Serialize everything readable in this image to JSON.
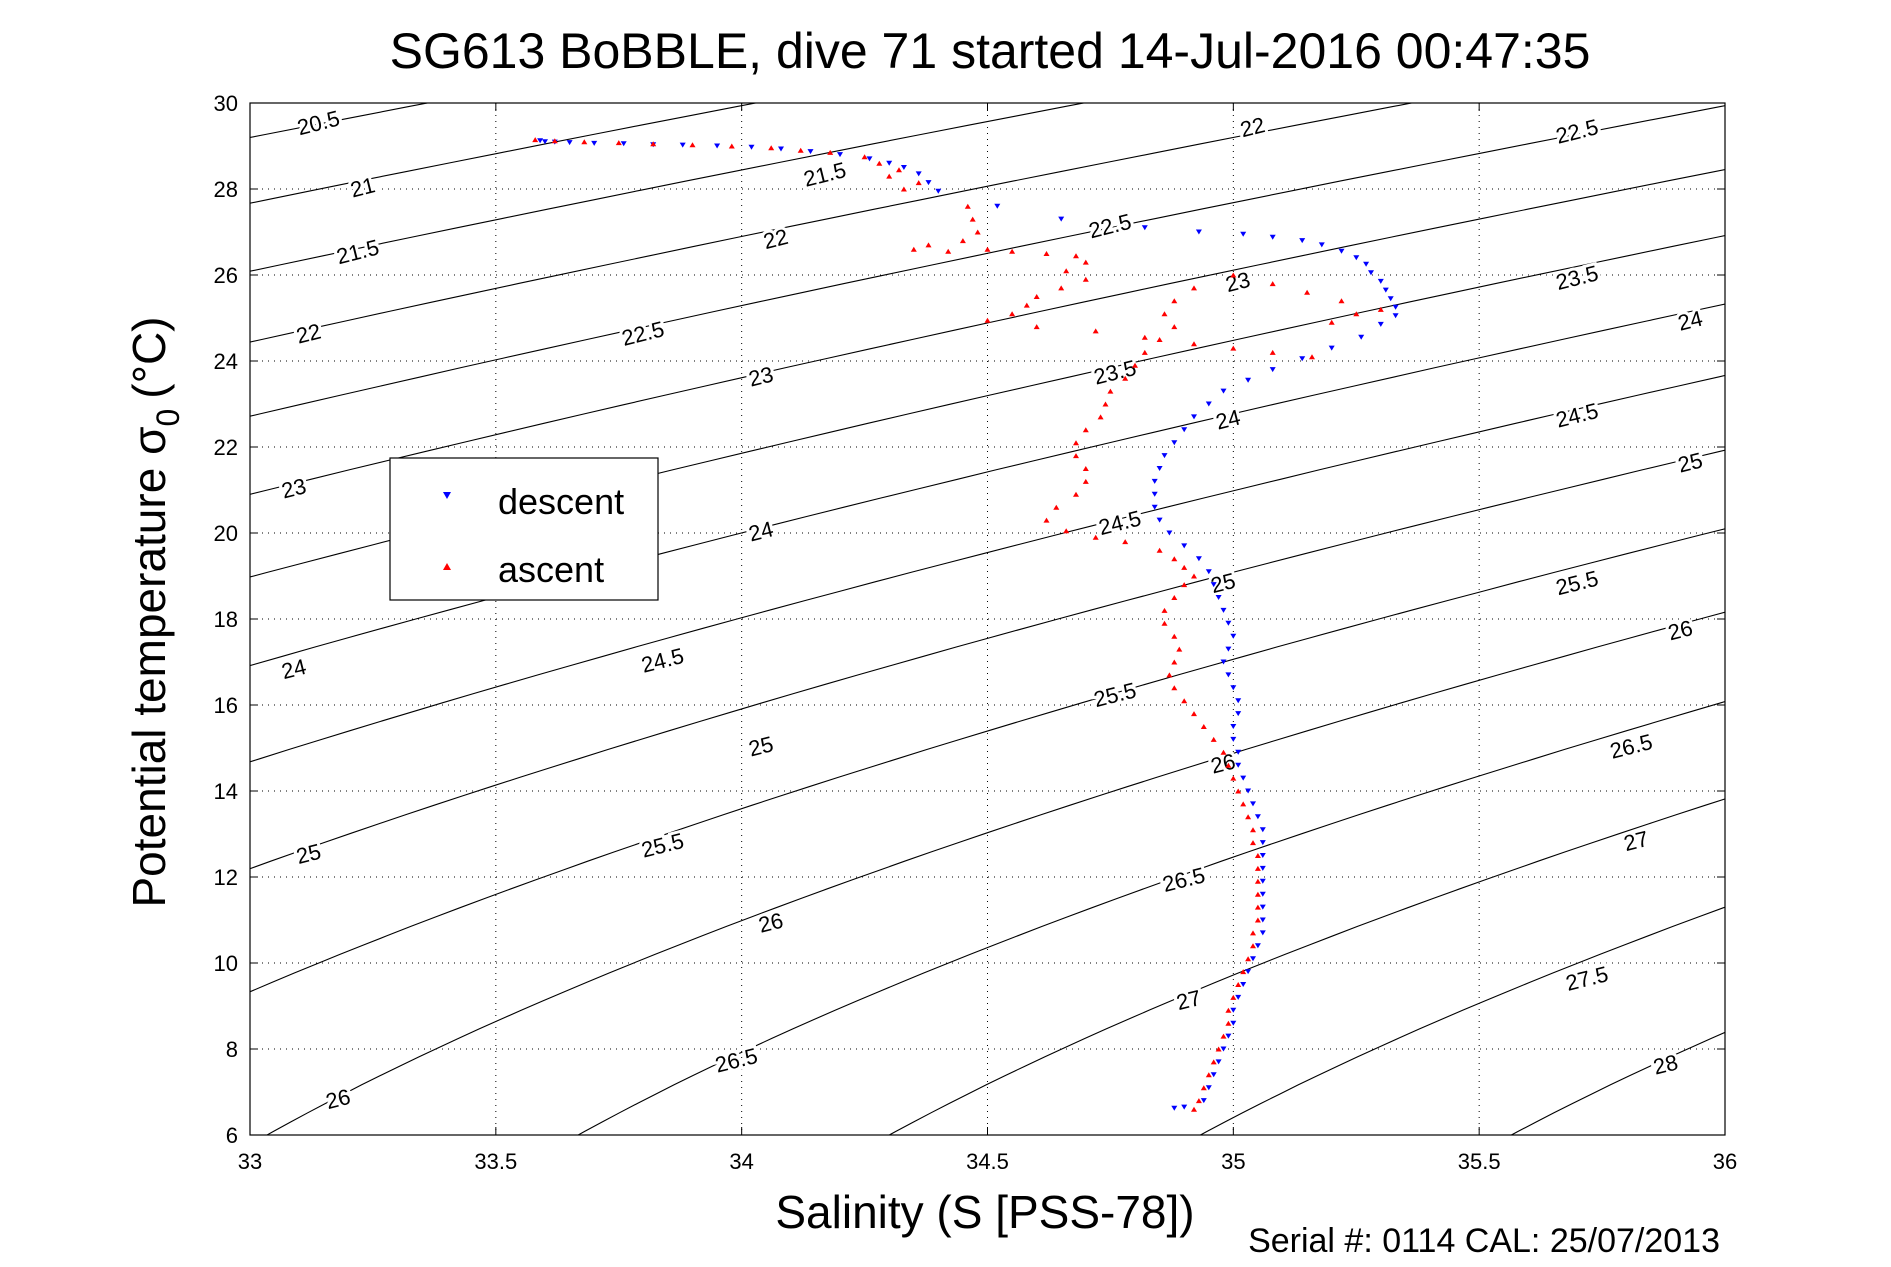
{
  "chart_data": {
    "type": "scatter",
    "title": "SG613 BoBBLE, dive 71 started 14-Jul-2016 00:47:35",
    "xlabel": "Salinity (S [PSS-78])",
    "ylabel_main": "Potential temperature σ",
    "ylabel_sub": "0",
    "ylabel_unit": "(°C)",
    "footer": "Serial #: 0114  CAL: 25/07/2013",
    "xlim": [
      33,
      36
    ],
    "ylim": [
      6,
      30
    ],
    "xticks": [
      "33",
      "33.5",
      "34",
      "34.5",
      "35",
      "35.5",
      "36"
    ],
    "yticks": [
      "6",
      "8",
      "10",
      "12",
      "14",
      "16",
      "18",
      "20",
      "22",
      "24",
      "26",
      "28",
      "30"
    ],
    "grid": "dotted",
    "legend": [
      {
        "label": "descent",
        "color": "#0000ff",
        "marker": "triangle-down"
      },
      {
        "label": "ascent",
        "color": "#ff0000",
        "marker": "triangle-up"
      }
    ],
    "legend_position": "left",
    "contours": {
      "levels": [
        20.5,
        21,
        21.5,
        22,
        22.5,
        23,
        23.5,
        24,
        24.5,
        25,
        25.5,
        26,
        26.5,
        27,
        27.5,
        28
      ],
      "labels": [
        {
          "text": "20.5",
          "s": 33.14,
          "t": 29.5
        },
        {
          "text": "21",
          "s": 33.23,
          "t": 28.0
        },
        {
          "text": "21.5",
          "s": 33.22,
          "t": 26.5
        },
        {
          "text": "22",
          "s": 33.12,
          "t": 24.6
        },
        {
          "text": "23",
          "s": 33.09,
          "t": 21.0
        },
        {
          "text": "24",
          "s": 33.09,
          "t": 16.8
        },
        {
          "text": "25",
          "s": 33.12,
          "t": 12.5
        },
        {
          "text": "26",
          "s": 33.18,
          "t": 6.8
        },
        {
          "text": "21.5",
          "s": 34.17,
          "t": 28.3
        },
        {
          "text": "22",
          "s": 34.07,
          "t": 26.8
        },
        {
          "text": "22.5",
          "s": 33.8,
          "t": 24.6
        },
        {
          "text": "23",
          "s": 34.04,
          "t": 23.6
        },
        {
          "text": "24",
          "s": 34.04,
          "t": 20.0
        },
        {
          "text": "24.5",
          "s": 33.84,
          "t": 17.0
        },
        {
          "text": "25",
          "s": 34.04,
          "t": 15.0
        },
        {
          "text": "25.5",
          "s": 33.84,
          "t": 12.7
        },
        {
          "text": "26",
          "s": 34.06,
          "t": 10.9
        },
        {
          "text": "26.5",
          "s": 33.99,
          "t": 7.7
        },
        {
          "text": "22.5",
          "s": 34.75,
          "t": 27.1
        },
        {
          "text": "23.5",
          "s": 34.76,
          "t": 23.7
        },
        {
          "text": "24.5",
          "s": 34.77,
          "t": 20.2
        },
        {
          "text": "25.5",
          "s": 34.76,
          "t": 16.2
        },
        {
          "text": "26.5",
          "s": 34.9,
          "t": 11.9
        },
        {
          "text": "27",
          "s": 34.91,
          "t": 9.1
        },
        {
          "text": "22",
          "s": 35.04,
          "t": 29.4
        },
        {
          "text": "23",
          "s": 35.01,
          "t": 25.8
        },
        {
          "text": "24",
          "s": 34.99,
          "t": 22.6
        },
        {
          "text": "25",
          "s": 34.98,
          "t": 18.8
        },
        {
          "text": "26",
          "s": 34.98,
          "t": 14.6
        },
        {
          "text": "22.5",
          "s": 35.7,
          "t": 29.3
        },
        {
          "text": "23.5",
          "s": 35.7,
          "t": 25.9
        },
        {
          "text": "24.5",
          "s": 35.7,
          "t": 22.7
        },
        {
          "text": "25.5",
          "s": 35.7,
          "t": 18.8
        },
        {
          "text": "26.5",
          "s": 35.81,
          "t": 15.0
        },
        {
          "text": "27",
          "s": 35.82,
          "t": 12.8
        },
        {
          "text": "27.5",
          "s": 35.72,
          "t": 9.6
        },
        {
          "text": "28",
          "s": 35.88,
          "t": 7.6
        },
        {
          "text": "24",
          "s": 35.93,
          "t": 24.9
        },
        {
          "text": "25",
          "s": 35.93,
          "t": 21.6
        },
        {
          "text": "26",
          "s": 35.91,
          "t": 17.7
        }
      ]
    },
    "series": [
      {
        "name": "descent",
        "color": "#0000ff",
        "marker": "triangle-down",
        "points": [
          [
            33.59,
            29.12
          ],
          [
            33.6,
            29.1
          ],
          [
            33.62,
            29.09
          ],
          [
            33.65,
            29.08
          ],
          [
            33.7,
            29.06
          ],
          [
            33.76,
            29.05
          ],
          [
            33.82,
            29.03
          ],
          [
            33.88,
            29.02
          ],
          [
            33.95,
            29.0
          ],
          [
            34.02,
            28.97
          ],
          [
            34.08,
            28.93
          ],
          [
            34.14,
            28.87
          ],
          [
            34.2,
            28.8
          ],
          [
            34.26,
            28.7
          ],
          [
            34.3,
            28.6
          ],
          [
            34.33,
            28.5
          ],
          [
            34.36,
            28.35
          ],
          [
            34.38,
            28.15
          ],
          [
            34.4,
            27.95
          ],
          [
            34.52,
            27.6
          ],
          [
            34.65,
            27.3
          ],
          [
            34.82,
            27.1
          ],
          [
            34.93,
            27.0
          ],
          [
            35.02,
            26.95
          ],
          [
            35.08,
            26.88
          ],
          [
            35.14,
            26.8
          ],
          [
            35.18,
            26.7
          ],
          [
            35.22,
            26.55
          ],
          [
            35.25,
            26.4
          ],
          [
            35.27,
            26.25
          ],
          [
            35.28,
            26.05
          ],
          [
            35.3,
            25.85
          ],
          [
            35.31,
            25.65
          ],
          [
            35.32,
            25.45
          ],
          [
            35.33,
            25.25
          ],
          [
            35.33,
            25.05
          ],
          [
            35.3,
            24.85
          ],
          [
            35.26,
            24.55
          ],
          [
            35.2,
            24.3
          ],
          [
            35.14,
            24.05
          ],
          [
            35.08,
            23.8
          ],
          [
            35.03,
            23.55
          ],
          [
            34.98,
            23.3
          ],
          [
            34.95,
            23.0
          ],
          [
            34.92,
            22.7
          ],
          [
            34.9,
            22.4
          ],
          [
            34.88,
            22.1
          ],
          [
            34.86,
            21.8
          ],
          [
            34.85,
            21.5
          ],
          [
            34.84,
            21.2
          ],
          [
            34.84,
            20.9
          ],
          [
            34.84,
            20.6
          ],
          [
            34.85,
            20.3
          ],
          [
            34.87,
            20.0
          ],
          [
            34.9,
            19.7
          ],
          [
            34.93,
            19.4
          ],
          [
            34.95,
            19.1
          ],
          [
            34.96,
            18.8
          ],
          [
            34.97,
            18.5
          ],
          [
            34.98,
            18.2
          ],
          [
            34.99,
            17.9
          ],
          [
            35.0,
            17.6
          ],
          [
            34.99,
            17.3
          ],
          [
            34.98,
            17.0
          ],
          [
            34.99,
            16.7
          ],
          [
            35.0,
            16.4
          ],
          [
            35.01,
            16.1
          ],
          [
            35.01,
            15.8
          ],
          [
            35.0,
            15.5
          ],
          [
            35.0,
            15.2
          ],
          [
            35.01,
            14.9
          ],
          [
            35.01,
            14.6
          ],
          [
            35.02,
            14.3
          ],
          [
            35.03,
            14.0
          ],
          [
            35.04,
            13.7
          ],
          [
            35.05,
            13.4
          ],
          [
            35.06,
            13.1
          ],
          [
            35.06,
            12.8
          ],
          [
            35.06,
            12.5
          ],
          [
            35.06,
            12.2
          ],
          [
            35.06,
            11.9
          ],
          [
            35.06,
            11.6
          ],
          [
            35.06,
            11.3
          ],
          [
            35.06,
            11.0
          ],
          [
            35.06,
            10.7
          ],
          [
            35.05,
            10.4
          ],
          [
            35.04,
            10.1
          ],
          [
            35.03,
            9.8
          ],
          [
            35.02,
            9.5
          ],
          [
            35.01,
            9.2
          ],
          [
            35.0,
            8.9
          ],
          [
            35.0,
            8.6
          ],
          [
            34.99,
            8.3
          ],
          [
            34.98,
            8.0
          ],
          [
            34.97,
            7.7
          ],
          [
            34.96,
            7.4
          ],
          [
            34.95,
            7.1
          ],
          [
            34.94,
            6.8
          ],
          [
            34.9,
            6.65
          ],
          [
            34.88,
            6.62
          ]
        ]
      },
      {
        "name": "ascent",
        "color": "#ff0000",
        "marker": "triangle-up",
        "points": [
          [
            33.58,
            29.15
          ],
          [
            33.62,
            29.12
          ],
          [
            33.68,
            29.1
          ],
          [
            33.75,
            29.08
          ],
          [
            33.82,
            29.05
          ],
          [
            33.9,
            29.03
          ],
          [
            33.98,
            29.0
          ],
          [
            34.06,
            28.96
          ],
          [
            34.12,
            28.9
          ],
          [
            34.18,
            28.85
          ],
          [
            34.25,
            28.75
          ],
          [
            34.28,
            28.6
          ],
          [
            34.32,
            28.45
          ],
          [
            34.3,
            28.3
          ],
          [
            34.36,
            28.15
          ],
          [
            34.33,
            28.0
          ],
          [
            34.46,
            27.6
          ],
          [
            34.47,
            27.3
          ],
          [
            34.48,
            27.0
          ],
          [
            34.45,
            26.8
          ],
          [
            34.38,
            26.7
          ],
          [
            34.35,
            26.6
          ],
          [
            34.42,
            26.55
          ],
          [
            34.5,
            26.6
          ],
          [
            34.55,
            26.55
          ],
          [
            34.62,
            26.5
          ],
          [
            34.68,
            26.45
          ],
          [
            34.7,
            26.3
          ],
          [
            34.66,
            26.1
          ],
          [
            34.7,
            25.9
          ],
          [
            34.65,
            25.7
          ],
          [
            34.6,
            25.5
          ],
          [
            34.58,
            25.3
          ],
          [
            34.55,
            25.1
          ],
          [
            34.5,
            24.95
          ],
          [
            34.6,
            24.8
          ],
          [
            34.72,
            24.7
          ],
          [
            34.82,
            24.55
          ],
          [
            34.92,
            24.4
          ],
          [
            35.0,
            24.3
          ],
          [
            35.08,
            24.2
          ],
          [
            35.16,
            24.1
          ],
          [
            35.2,
            24.9
          ],
          [
            35.25,
            25.1
          ],
          [
            35.3,
            25.2
          ],
          [
            35.22,
            25.4
          ],
          [
            35.15,
            25.6
          ],
          [
            35.08,
            25.8
          ],
          [
            35.0,
            26.0
          ],
          [
            34.92,
            25.7
          ],
          [
            34.88,
            25.4
          ],
          [
            34.86,
            25.1
          ],
          [
            34.88,
            24.8
          ],
          [
            34.85,
            24.5
          ],
          [
            34.82,
            24.2
          ],
          [
            34.8,
            23.9
          ],
          [
            34.78,
            23.6
          ],
          [
            34.75,
            23.3
          ],
          [
            34.74,
            23.0
          ],
          [
            34.73,
            22.7
          ],
          [
            34.7,
            22.4
          ],
          [
            34.68,
            22.1
          ],
          [
            34.68,
            21.8
          ],
          [
            34.7,
            21.5
          ],
          [
            34.7,
            21.2
          ],
          [
            34.68,
            20.9
          ],
          [
            34.64,
            20.6
          ],
          [
            34.62,
            20.3
          ],
          [
            34.66,
            20.05
          ],
          [
            34.72,
            19.9
          ],
          [
            34.78,
            19.8
          ],
          [
            34.85,
            19.6
          ],
          [
            34.88,
            19.4
          ],
          [
            34.9,
            19.2
          ],
          [
            34.92,
            19.0
          ],
          [
            34.9,
            18.8
          ],
          [
            34.88,
            18.5
          ],
          [
            34.86,
            18.2
          ],
          [
            34.86,
            17.9
          ],
          [
            34.88,
            17.6
          ],
          [
            34.89,
            17.3
          ],
          [
            34.88,
            17.0
          ],
          [
            34.87,
            16.7
          ],
          [
            34.88,
            16.4
          ],
          [
            34.9,
            16.1
          ],
          [
            34.92,
            15.8
          ],
          [
            34.94,
            15.5
          ],
          [
            34.96,
            15.2
          ],
          [
            34.98,
            14.9
          ],
          [
            34.99,
            14.6
          ],
          [
            35.0,
            14.3
          ],
          [
            35.01,
            14.0
          ],
          [
            35.02,
            13.7
          ],
          [
            35.03,
            13.4
          ],
          [
            35.04,
            13.1
          ],
          [
            35.04,
            12.8
          ],
          [
            35.05,
            12.5
          ],
          [
            35.05,
            12.2
          ],
          [
            35.05,
            11.9
          ],
          [
            35.05,
            11.6
          ],
          [
            35.05,
            11.3
          ],
          [
            35.05,
            11.0
          ],
          [
            35.04,
            10.7
          ],
          [
            35.04,
            10.4
          ],
          [
            35.03,
            10.1
          ],
          [
            35.02,
            9.8
          ],
          [
            35.01,
            9.5
          ],
          [
            35.0,
            9.2
          ],
          [
            34.99,
            8.9
          ],
          [
            34.99,
            8.6
          ],
          [
            34.98,
            8.3
          ],
          [
            34.97,
            8.0
          ],
          [
            34.96,
            7.7
          ],
          [
            34.95,
            7.4
          ],
          [
            34.94,
            7.1
          ],
          [
            34.93,
            6.8
          ],
          [
            34.92,
            6.6
          ]
        ]
      }
    ]
  }
}
